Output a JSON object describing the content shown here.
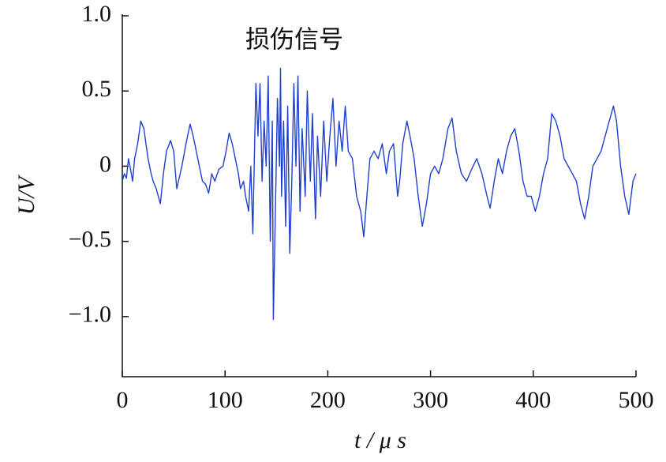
{
  "chart_data": {
    "type": "line",
    "annotation": "损伤信号",
    "xlabel": "t / μ s",
    "ylabel": "U/V",
    "xlim": [
      0,
      500
    ],
    "xticks": [
      0,
      100,
      200,
      300,
      400,
      500
    ],
    "ylim": [
      -1.4,
      1.0
    ],
    "yticks": [
      {
        "value": 1,
        "label": "1.0"
      },
      {
        "value": 0.5,
        "label": "0.5"
      },
      0,
      {
        "value": -0.5,
        "label": "−0.5"
      },
      {
        "value": -1,
        "label": "−1.0"
      }
    ],
    "series": [
      {
        "color": "#1f3fd0",
        "x": [
          0,
          2,
          4,
          6,
          8,
          10,
          12,
          15,
          18,
          21,
          25,
          28,
          30,
          33,
          37,
          40,
          43,
          47,
          50,
          53,
          58,
          62,
          66,
          69,
          72,
          75,
          78,
          81,
          84,
          87,
          90,
          94,
          98,
          101,
          104,
          107,
          110,
          113,
          115,
          118,
          120,
          123,
          125,
          127,
          130,
          132,
          134,
          136,
          138,
          140,
          142,
          144,
          146,
          147,
          149,
          151,
          153,
          154,
          155,
          157,
          159,
          161,
          163,
          165,
          167,
          169,
          171,
          173,
          175,
          178,
          180,
          183,
          185,
          188,
          190,
          193,
          196,
          199,
          202,
          205,
          208,
          211,
          214,
          217,
          220,
          224,
          228,
          232,
          235,
          238,
          241,
          245,
          249,
          253,
          257,
          260,
          264,
          268,
          270,
          273,
          277,
          280,
          284,
          288,
          292,
          296,
          300,
          304,
          308,
          312,
          317,
          321,
          325,
          330,
          335,
          340,
          345,
          350,
          355,
          358,
          362,
          366,
          370,
          374,
          378,
          382,
          386,
          390,
          394,
          398,
          402,
          406,
          410,
          414,
          418,
          422,
          426,
          430,
          434,
          438,
          442,
          446,
          450,
          454,
          458,
          462,
          466,
          470,
          474,
          478,
          481,
          485,
          489,
          493,
          497,
          500
        ],
        "values": [
          -0.1,
          -0.05,
          -0.08,
          0.05,
          -0.02,
          -0.1,
          0.05,
          0.15,
          0.3,
          0.25,
          0.05,
          -0.05,
          -0.1,
          -0.15,
          -0.25,
          -0.05,
          0.1,
          0.17,
          0.1,
          -0.15,
          0.0,
          0.15,
          0.28,
          0.2,
          0.1,
          0.0,
          -0.1,
          -0.12,
          -0.18,
          -0.05,
          -0.1,
          -0.02,
          0.0,
          0.1,
          0.22,
          0.15,
          0.05,
          -0.05,
          -0.15,
          -0.1,
          -0.2,
          -0.3,
          0.0,
          -0.45,
          0.55,
          0.2,
          0.55,
          -0.1,
          0.3,
          0.0,
          0.6,
          -0.5,
          0.3,
          -1.02,
          -0.3,
          0.45,
          0.0,
          0.65,
          -0.2,
          0.3,
          -0.4,
          0.4,
          -0.58,
          -0.1,
          0.55,
          0.0,
          0.6,
          -0.3,
          0.25,
          -0.2,
          0.5,
          -0.1,
          0.35,
          -0.35,
          0.2,
          -0.2,
          0.3,
          -0.1,
          0.2,
          0.45,
          0.0,
          0.3,
          0.1,
          0.4,
          0.1,
          0.05,
          -0.2,
          -0.3,
          -0.47,
          -0.2,
          0.05,
          0.1,
          0.05,
          0.15,
          -0.05,
          0.1,
          0.15,
          -0.2,
          -0.1,
          0.15,
          0.3,
          0.2,
          0.05,
          -0.2,
          -0.4,
          -0.25,
          -0.05,
          0.0,
          -0.05,
          0.05,
          0.25,
          0.32,
          0.1,
          -0.05,
          -0.1,
          -0.02,
          0.05,
          -0.05,
          -0.2,
          -0.28,
          -0.1,
          0.05,
          -0.05,
          0.1,
          0.2,
          0.25,
          0.1,
          -0.1,
          -0.2,
          -0.2,
          -0.3,
          -0.2,
          -0.05,
          0.05,
          0.35,
          0.3,
          0.2,
          0.05,
          0.0,
          -0.05,
          -0.1,
          -0.25,
          -0.35,
          -0.2,
          0.0,
          0.05,
          0.1,
          0.2,
          0.3,
          0.4,
          0.3,
          0.0,
          -0.2,
          -0.32,
          -0.1,
          -0.05
        ]
      }
    ]
  }
}
